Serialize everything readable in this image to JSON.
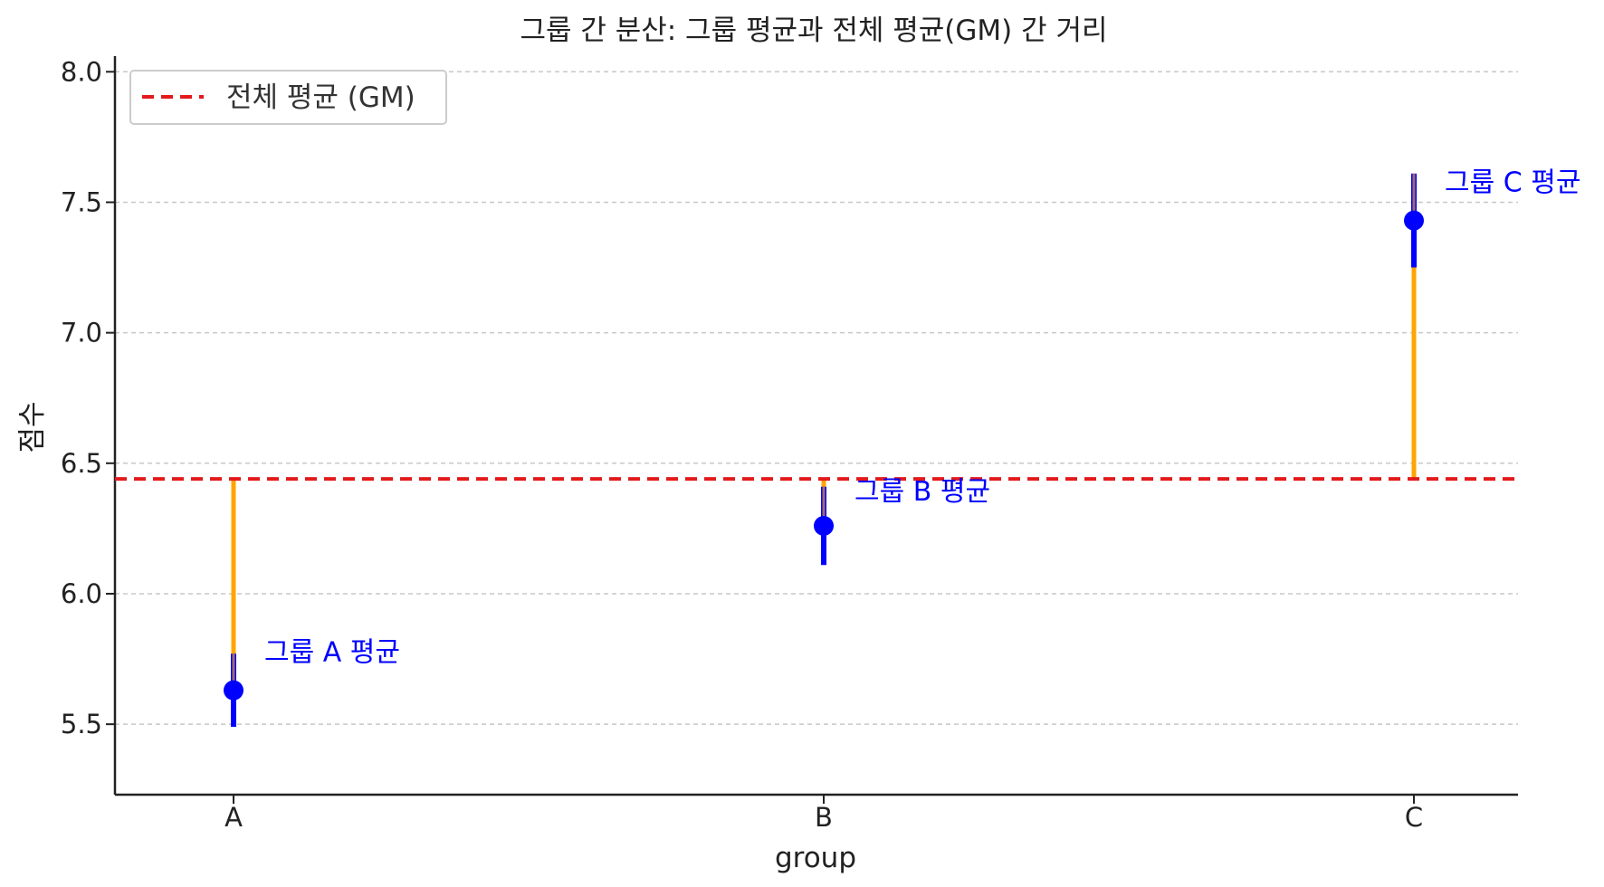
{
  "chart_data": {
    "type": "scatter",
    "title": "그룹 간 분산: 그룹 평균과 전체 평균(GM) 간 거리",
    "xlabel": "group",
    "ylabel": "점수",
    "categories": [
      "A",
      "B",
      "C"
    ],
    "values": [
      5.63,
      6.26,
      7.43
    ],
    "error": [
      0.14,
      0.15,
      0.18
    ],
    "grand_mean": 6.44,
    "ylim": [
      5.23,
      8.06
    ],
    "yticks": [
      "5.5",
      "6.0",
      "6.5",
      "7.0",
      "7.5",
      "8.0"
    ],
    "grid": "y-dashed",
    "legend": {
      "position": "top-left",
      "entries": [
        "전체 평균 (GM)"
      ]
    },
    "annotations": [
      "그룹 A 평균",
      "그룹 B 평균",
      "그룹 C 평균"
    ],
    "colors": {
      "mean_point": "#0000ff",
      "distance_line": "#ffa500",
      "grand_mean_line": "#e31a1c",
      "grid": "#c8c8c8",
      "axis": "#222222"
    }
  }
}
